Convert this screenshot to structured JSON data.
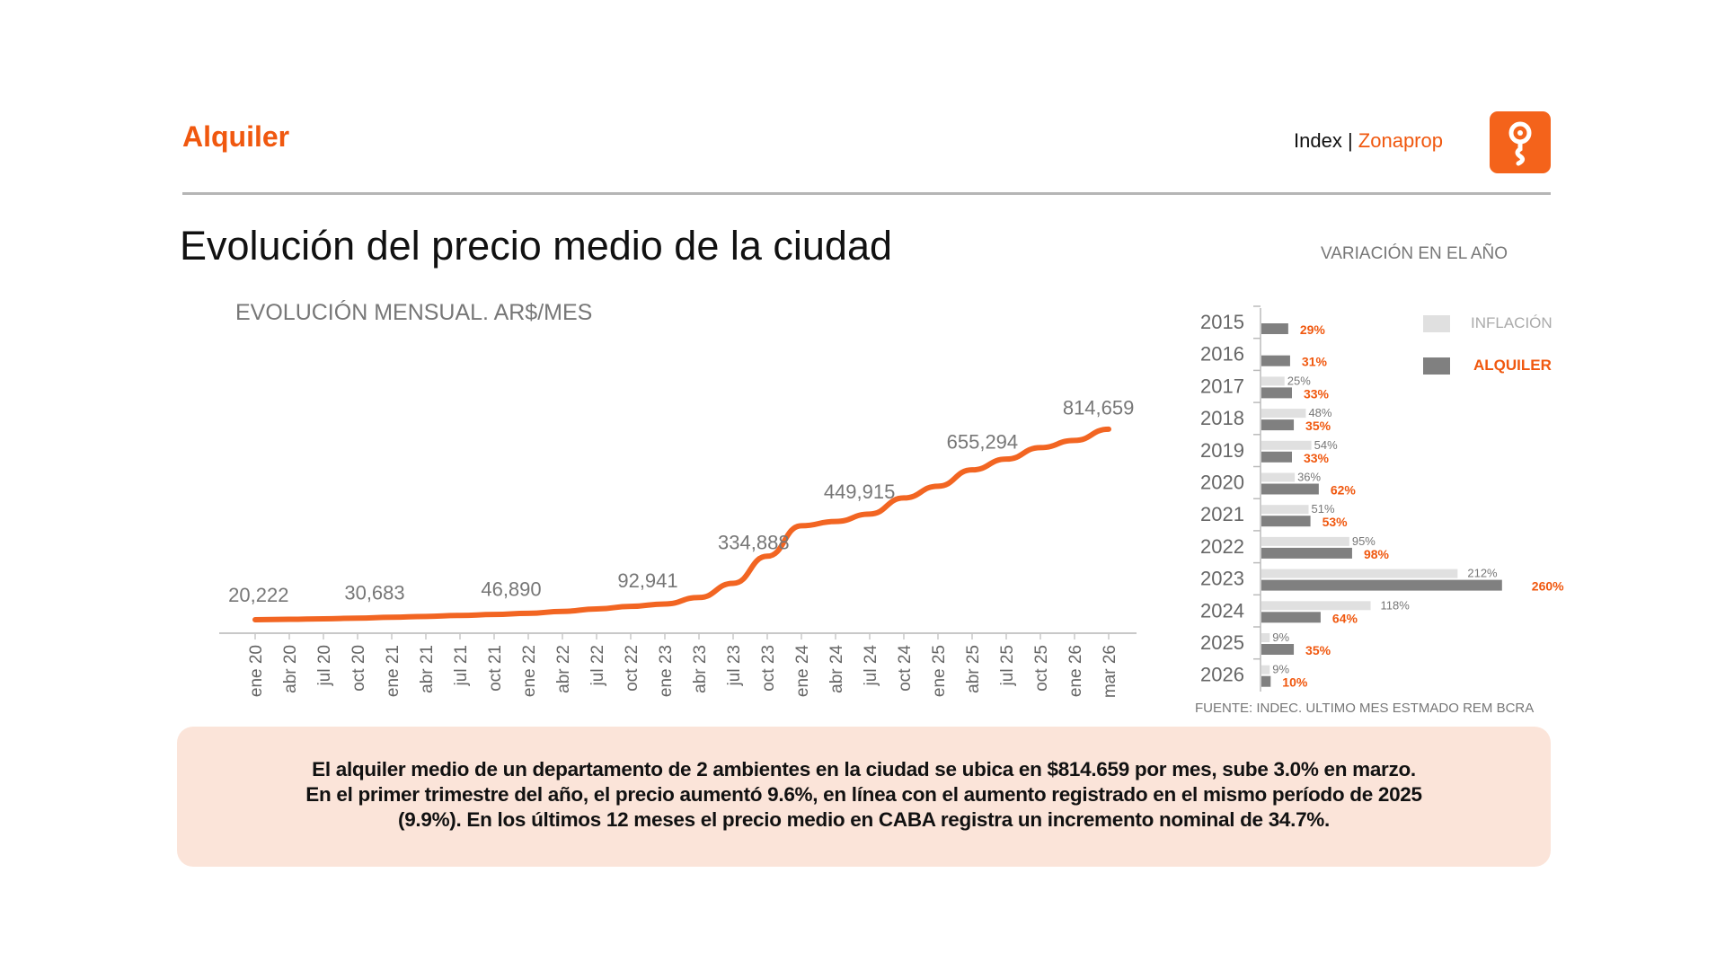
{
  "header": {
    "section": "Alquiler",
    "brand_index": "Index",
    "brand_sep": "|",
    "brand_name": "Zonaprop",
    "logo_icon": "zonaprop-key-icon"
  },
  "title": "Evolución del precio medio de la ciudad",
  "colors": {
    "accent": "#f0580f",
    "line": "#f26522",
    "inflation": "#e0e0e0",
    "rent": "#808080",
    "note_bg": "#fbe4d9"
  },
  "chart_data": [
    {
      "type": "line",
      "title": "EVOLUCIÓN MENSUAL. AR$/MES",
      "xlabel": "",
      "ylabel": "AR$/mes",
      "categories": [
        "ene 20",
        "abr 20",
        "jul 20",
        "oct 20",
        "ene 21",
        "abr 21",
        "jul 21",
        "oct 21",
        "ene 22",
        "abr 22",
        "jul 22",
        "oct 22",
        "ene 23",
        "abr 23",
        "jul 23",
        "oct 23",
        "ene 24",
        "abr 24",
        "jul 24",
        "oct 24",
        "ene 25",
        "abr 25",
        "jul 25",
        "oct 25",
        "ene 26",
        "mar 26"
      ],
      "values": [
        20222,
        22000,
        24000,
        27000,
        30683,
        34000,
        38000,
        42000,
        46890,
        55000,
        65000,
        76000,
        86000,
        113000,
        172000,
        285000,
        412000,
        430000,
        461000,
        528000,
        577000,
        645000,
        690000,
        738000,
        768000,
        814659
      ],
      "data_labels": [
        {
          "at": 0.1,
          "text": "20,222"
        },
        {
          "at": 3.5,
          "text": "30,683"
        },
        {
          "at": 7.5,
          "text": "46,890"
        },
        {
          "at": 11.5,
          "text": "92,941"
        },
        {
          "at": 14.6,
          "text": "334,888"
        },
        {
          "at": 17.7,
          "text": "449,915"
        },
        {
          "at": 21.3,
          "text": "655,294"
        },
        {
          "at": 24.7,
          "text": "814,659"
        }
      ],
      "ylim": [
        0,
        814659
      ],
      "grid": false
    },
    {
      "type": "bar",
      "title": "VARIACIÓN EN EL AÑO",
      "orientation": "horizontal",
      "categories": [
        "2015",
        "2016",
        "2017",
        "2018",
        "2019",
        "2020",
        "2021",
        "2022",
        "2023",
        "2024",
        "2025",
        "2026"
      ],
      "series": [
        {
          "name": "INFLACIÓN",
          "values": [
            null,
            null,
            25,
            48,
            54,
            36,
            51,
            95,
            212,
            118,
            9,
            9
          ],
          "labels": [
            "",
            "",
            "25%",
            "48%",
            "54%",
            "36%",
            "51%",
            "95%",
            "212%",
            "118%",
            "9%",
            "9%"
          ]
        },
        {
          "name": "ALQUILER",
          "values": [
            29,
            31,
            33,
            35,
            33,
            62,
            53,
            98,
            260,
            64,
            35,
            10
          ],
          "labels": [
            "29%",
            "31%",
            "33%",
            "35%",
            "33%",
            "62%",
            "53%",
            "98%",
            "260%",
            "64%",
            "35%",
            "10%"
          ]
        }
      ],
      "legend": "top-right",
      "source": "FUENTE: INDEC. ULTIMO MES ESTMADO REM BCRA"
    }
  ],
  "note": [
    "El alquiler medio de un departamento de 2 ambientes en la ciudad se ubica en $814.659 por mes, sube 3.0% en marzo.",
    "En el primer trimestre del año, el precio aumentó 9.6%, en línea con el aumento registrado en el mismo período de 2025",
    "(9.9%). En los últimos 12 meses el precio medio en CABA registra un incremento nominal de 34.7%."
  ]
}
